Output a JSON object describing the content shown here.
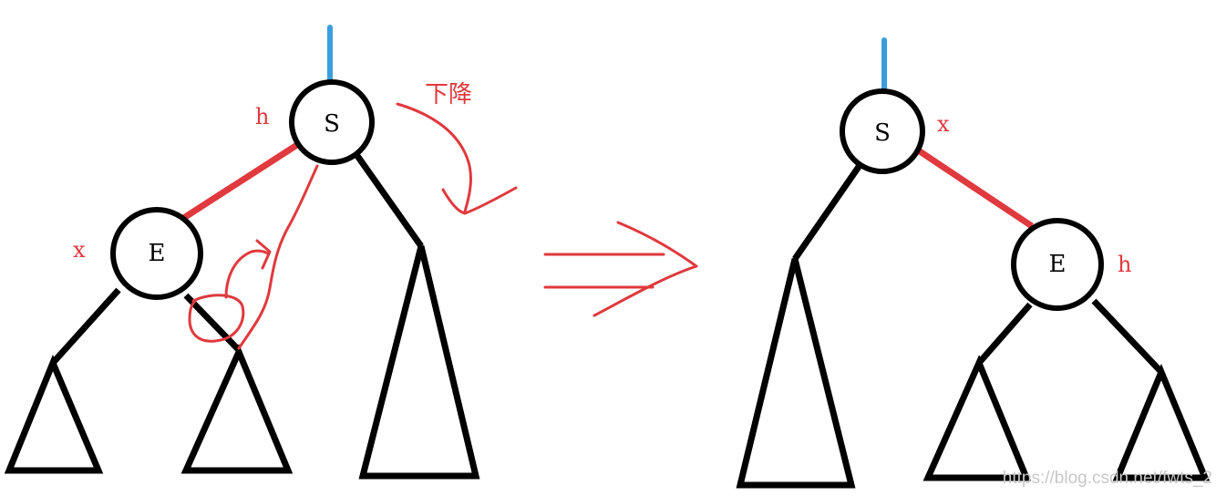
{
  "colors": {
    "ink": "#000000",
    "red": "#e0393e",
    "blue": "#3b9ddd",
    "watermark": "#c8c8c8"
  },
  "before": {
    "root": {
      "label": "S",
      "tag": "h"
    },
    "child": {
      "label": "E",
      "tag": "x"
    },
    "rotation_note": "下降"
  },
  "after": {
    "root": {
      "label": "S",
      "tag": "x"
    },
    "child": {
      "label": "E",
      "tag": "h"
    }
  },
  "watermark": "https://blog.csdn.net/fwts_2"
}
